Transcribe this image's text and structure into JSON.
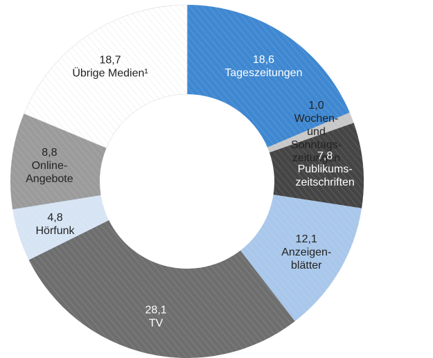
{
  "chart_data": {
    "type": "pie",
    "title": "",
    "slices": [
      {
        "value_label": "18,6",
        "name": "Tageszeitungen",
        "value": 18.6,
        "color": "#3f88d1",
        "text_color": "#ffffff"
      },
      {
        "value_label": "1,0",
        "name": "Wochen-\nund\nSonntags-\nzeitungen",
        "value": 1.0,
        "color": "#c8c8c8",
        "text_color": "#222222"
      },
      {
        "value_label": "7,8",
        "name": "Publikums-\nzeitschriften",
        "value": 7.8,
        "color": "#454545",
        "text_color": "#ffffff"
      },
      {
        "value_label": "12,1",
        "name": "Anzeigen-\nblätter",
        "value": 12.1,
        "color": "#a9c7ea",
        "text_color": "#222222"
      },
      {
        "value_label": "28,1",
        "name": "TV",
        "value": 28.1,
        "color": "#6e6e6e",
        "text_color": "#ffffff"
      },
      {
        "value_label": "4,8",
        "name": "Hörfunk",
        "value": 4.8,
        "color": "#d6e4f4",
        "text_color": "#222222"
      },
      {
        "value_label": "8,8",
        "name": "Online-\nAngebote",
        "value": 8.8,
        "color": "#9b9b9b",
        "text_color": "#222222"
      },
      {
        "value_label": "18,7",
        "name": "Übrige Medien¹",
        "value": 18.7,
        "color": "#ffffff",
        "text_color": "#222222"
      }
    ]
  }
}
